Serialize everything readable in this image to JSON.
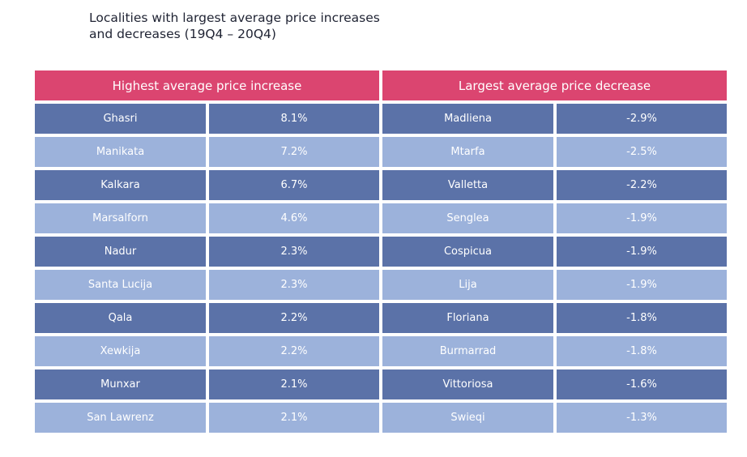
{
  "title_line1": "Localities with largest average price increases",
  "title_line2": "and decreases (19Q4 – 20Q4)",
  "colors": {
    "header": "#DB4570",
    "row_dark": "#5B72A8",
    "row_light": "#9CB2DB"
  },
  "increase": {
    "header": "Highest average price increase",
    "rows": [
      {
        "locality": "Ghasri",
        "change": "8.1%"
      },
      {
        "locality": "Manikata",
        "change": "7.2%"
      },
      {
        "locality": "Kalkara",
        "change": "6.7%"
      },
      {
        "locality": "Marsalforn",
        "change": "4.6%"
      },
      {
        "locality": "Nadur",
        "change": "2.3%"
      },
      {
        "locality": "Santa Lucija",
        "change": "2.3%"
      },
      {
        "locality": "Qala",
        "change": "2.2%"
      },
      {
        "locality": "Xewkija",
        "change": "2.2%"
      },
      {
        "locality": "Munxar",
        "change": "2.1%"
      },
      {
        "locality": "San Lawrenz",
        "change": "2.1%"
      }
    ]
  },
  "decrease": {
    "header": "Largest average price decrease",
    "rows": [
      {
        "locality": "Madliena",
        "change": "-2.9%"
      },
      {
        "locality": "Mtarfa",
        "change": "-2.5%"
      },
      {
        "locality": "Valletta",
        "change": "-2.2%"
      },
      {
        "locality": "Senglea",
        "change": "-1.9%"
      },
      {
        "locality": "Cospicua",
        "change": "-1.9%"
      },
      {
        "locality": "Lija",
        "change": "-1.9%"
      },
      {
        "locality": "Floriana",
        "change": "-1.8%"
      },
      {
        "locality": "Burmarrad",
        "change": "-1.8%"
      },
      {
        "locality": "Vittoriosa",
        "change": "-1.6%"
      },
      {
        "locality": "Swieqi",
        "change": "-1.3%"
      }
    ]
  }
}
